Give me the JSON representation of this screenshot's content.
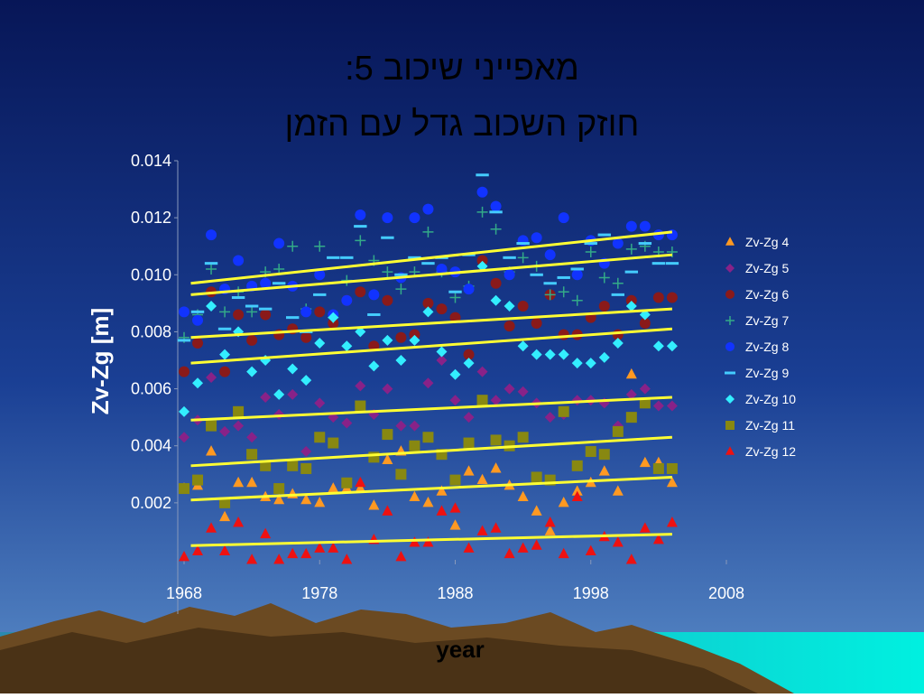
{
  "chart_data": {
    "type": "scatter",
    "title": "מאפייני שיכוב 5:",
    "subtitle": "חוזק השכוב גדל עם הזמן",
    "x_label": "year",
    "y_label": "Zv-Zg [m]",
    "xlim": [
      1968,
      2008
    ],
    "xticks": [
      1968,
      1978,
      1988,
      1998,
      2008
    ],
    "ylim": [
      0,
      0.014
    ],
    "yticks": [
      0.002,
      0.004,
      0.006,
      0.008,
      {
        "value": 0.01,
        "label": "0.010"
      },
      0.012,
      0.014
    ],
    "trend_color": "#ffff33",
    "trend_x": [
      1968.5,
      2004
    ],
    "x": [
      1968,
      1969,
      1970,
      1971,
      1972,
      1973,
      1974,
      1975,
      1976,
      1977,
      1978,
      1979,
      1980,
      1981,
      1982,
      1983,
      1984,
      1985,
      1986,
      1987,
      1988,
      1989,
      1990,
      1991,
      1992,
      1993,
      1994,
      1995,
      1996,
      1997,
      1998,
      1999,
      2000,
      2001,
      2002,
      2003,
      2004
    ],
    "series": [
      {
        "name": "Zv-Zg 4",
        "color": "#ff9922",
        "marker": "triangle",
        "trend": [
          0.0021,
          0.0029
        ],
        "values": [
          0.0025,
          0.0026,
          0.0038,
          0.0015,
          0.0027,
          0.0027,
          0.0022,
          0.0021,
          0.0023,
          0.0021,
          0.002,
          0.0025,
          0.0025,
          0.0025,
          0.0019,
          0.0035,
          0.0038,
          0.0022,
          0.002,
          0.0024,
          0.0012,
          0.0031,
          0.0028,
          0.0032,
          0.0026,
          0.0022,
          0.0017,
          0.001,
          0.002,
          0.0024,
          0.0027,
          0.0031,
          0.0024,
          0.0065,
          0.0034,
          0.0034,
          0.0027
        ]
      },
      {
        "name": "Zv-Zg 5",
        "color": "#882288",
        "marker": "diamond",
        "trend": [
          0.0049,
          0.0057
        ],
        "values": [
          0.0043,
          0.0049,
          0.0064,
          0.0045,
          0.0047,
          0.0043,
          0.0057,
          0.0051,
          0.0058,
          0.0038,
          0.0055,
          0.005,
          0.0048,
          0.0061,
          0.0051,
          0.006,
          0.0047,
          0.0047,
          0.0062,
          0.007,
          0.0056,
          0.005,
          0.0066,
          0.0056,
          0.006,
          0.0059,
          0.0055,
          0.005,
          0.0051,
          0.0056,
          0.0056,
          0.0055,
          0.0047,
          0.0058,
          0.006,
          0.0054,
          0.0054
        ]
      },
      {
        "name": "Zv-Zg 6",
        "color": "#8a1a1a",
        "marker": "circle",
        "trend": [
          0.0078,
          0.0088
        ],
        "values": [
          0.0066,
          0.0076,
          0.0094,
          0.0066,
          0.0086,
          0.0077,
          0.0086,
          0.0079,
          0.0081,
          0.0078,
          0.0087,
          0.0083,
          0.0091,
          0.0094,
          0.0075,
          0.0091,
          0.0078,
          0.0079,
          0.009,
          0.0088,
          0.0085,
          0.0072,
          0.0105,
          0.0097,
          0.0082,
          0.0089,
          0.0083,
          0.0093,
          0.0079,
          0.0079,
          0.0085,
          0.0089,
          0.0079,
          0.0091,
          0.0083,
          0.0092,
          0.0092
        ]
      },
      {
        "name": "Zv-Zg 7",
        "color": "#33aa88",
        "marker": "plus",
        "trend": [
          0.0093,
          0.0107
        ],
        "values": [
          0.0078,
          0.0086,
          0.0102,
          0.0087,
          0.0094,
          0.0087,
          0.0101,
          0.0102,
          0.011,
          0.0088,
          0.011,
          0.0085,
          0.0098,
          0.0112,
          0.0105,
          0.0101,
          0.0095,
          0.0101,
          0.0115,
          0.0101,
          0.0092,
          0.0096,
          0.0122,
          0.0116,
          0.0101,
          0.0106,
          0.0103,
          0.0093,
          0.0094,
          0.0091,
          0.0108,
          0.0099,
          0.0097,
          0.0109,
          0.011,
          0.0108,
          0.0108
        ]
      },
      {
        "name": "Zv-Zg 8",
        "color": "#1133ff",
        "marker": "circle",
        "trend": [
          0.0097,
          0.0115
        ],
        "values": [
          0.0087,
          0.0084,
          0.0114,
          0.0095,
          0.0105,
          0.0096,
          0.0097,
          0.0111,
          0.0096,
          0.0087,
          0.01,
          0.0086,
          0.0091,
          0.0121,
          0.0093,
          0.012,
          0.0099,
          0.012,
          0.0123,
          0.0102,
          0.0101,
          0.0095,
          0.0129,
          0.0124,
          0.01,
          0.0112,
          0.0113,
          0.0107,
          0.012,
          0.01,
          0.0112,
          0.0104,
          0.0111,
          0.0117,
          0.0117,
          0.0114,
          0.0114
        ]
      },
      {
        "name": "Zv-Zg 9",
        "color": "#44ccff",
        "marker": "dash",
        "values": [
          0.0077,
          0.0087,
          0.0104,
          0.0081,
          0.0092,
          0.0089,
          0.0088,
          0.0097,
          0.0085,
          0.008,
          0.0093,
          0.0106,
          0.0106,
          0.0117,
          0.0086,
          0.0113,
          0.01,
          0.0106,
          0.0104,
          0.0106,
          0.0094,
          0.0107,
          0.0135,
          0.0122,
          0.0106,
          0.0111,
          0.01,
          0.0097,
          0.0099,
          0.0102,
          0.0111,
          0.0114,
          0.0093,
          0.0101,
          0.0111,
          0.0104,
          0.0104
        ]
      },
      {
        "name": "Zv-Zg 10",
        "color": "#33eeff",
        "marker": "diamond",
        "trend": [
          0.0069,
          0.0081
        ],
        "values": [
          0.0052,
          0.0062,
          0.0089,
          0.0072,
          0.008,
          0.0066,
          0.007,
          0.0058,
          0.0067,
          0.0063,
          0.0076,
          0.0085,
          0.0075,
          0.008,
          0.0068,
          0.0077,
          0.007,
          0.0077,
          0.0087,
          0.0073,
          0.0065,
          0.0069,
          0.0103,
          0.0091,
          0.0089,
          0.0075,
          0.0072,
          0.0072,
          0.0072,
          0.0069,
          0.0069,
          0.0071,
          0.0076,
          0.0089,
          0.0086,
          0.0075,
          0.0075
        ]
      },
      {
        "name": "Zv-Zg 11",
        "color": "#888811",
        "marker": "square",
        "trend": [
          0.0033,
          0.0043
        ],
        "values": [
          0.0025,
          0.0028,
          0.0047,
          0.002,
          0.0052,
          0.0037,
          0.0033,
          0.0025,
          0.0033,
          0.0032,
          0.0043,
          0.0041,
          0.0027,
          0.0054,
          0.0036,
          0.0044,
          0.003,
          0.004,
          0.0043,
          0.0037,
          0.0028,
          0.0041,
          0.0056,
          0.0042,
          0.004,
          0.0043,
          0.0029,
          0.0028,
          0.0052,
          0.0033,
          0.0038,
          0.0037,
          0.0045,
          0.005,
          0.0055,
          0.0032,
          0.0032
        ]
      },
      {
        "name": "Zv-Zg 12",
        "color": "#ee1111",
        "marker": "triangle",
        "trend": [
          0.0005,
          0.0009
        ],
        "values": [
          0.0001,
          0.0003,
          0.0011,
          0.0003,
          0.0013,
          0,
          0.0009,
          0,
          0.0002,
          0.0002,
          0.0004,
          0.0004,
          0,
          0.0027,
          0.0007,
          0.0017,
          0.0001,
          0.0006,
          0.0006,
          0.0017,
          0.0018,
          0.0004,
          0.001,
          0.0011,
          0.0002,
          0.0004,
          0.0005,
          0.0013,
          0.0002,
          0.0022,
          0.0003,
          0.0008,
          0.0006,
          0,
          0.0011,
          0.0007,
          0.0013
        ]
      }
    ]
  }
}
